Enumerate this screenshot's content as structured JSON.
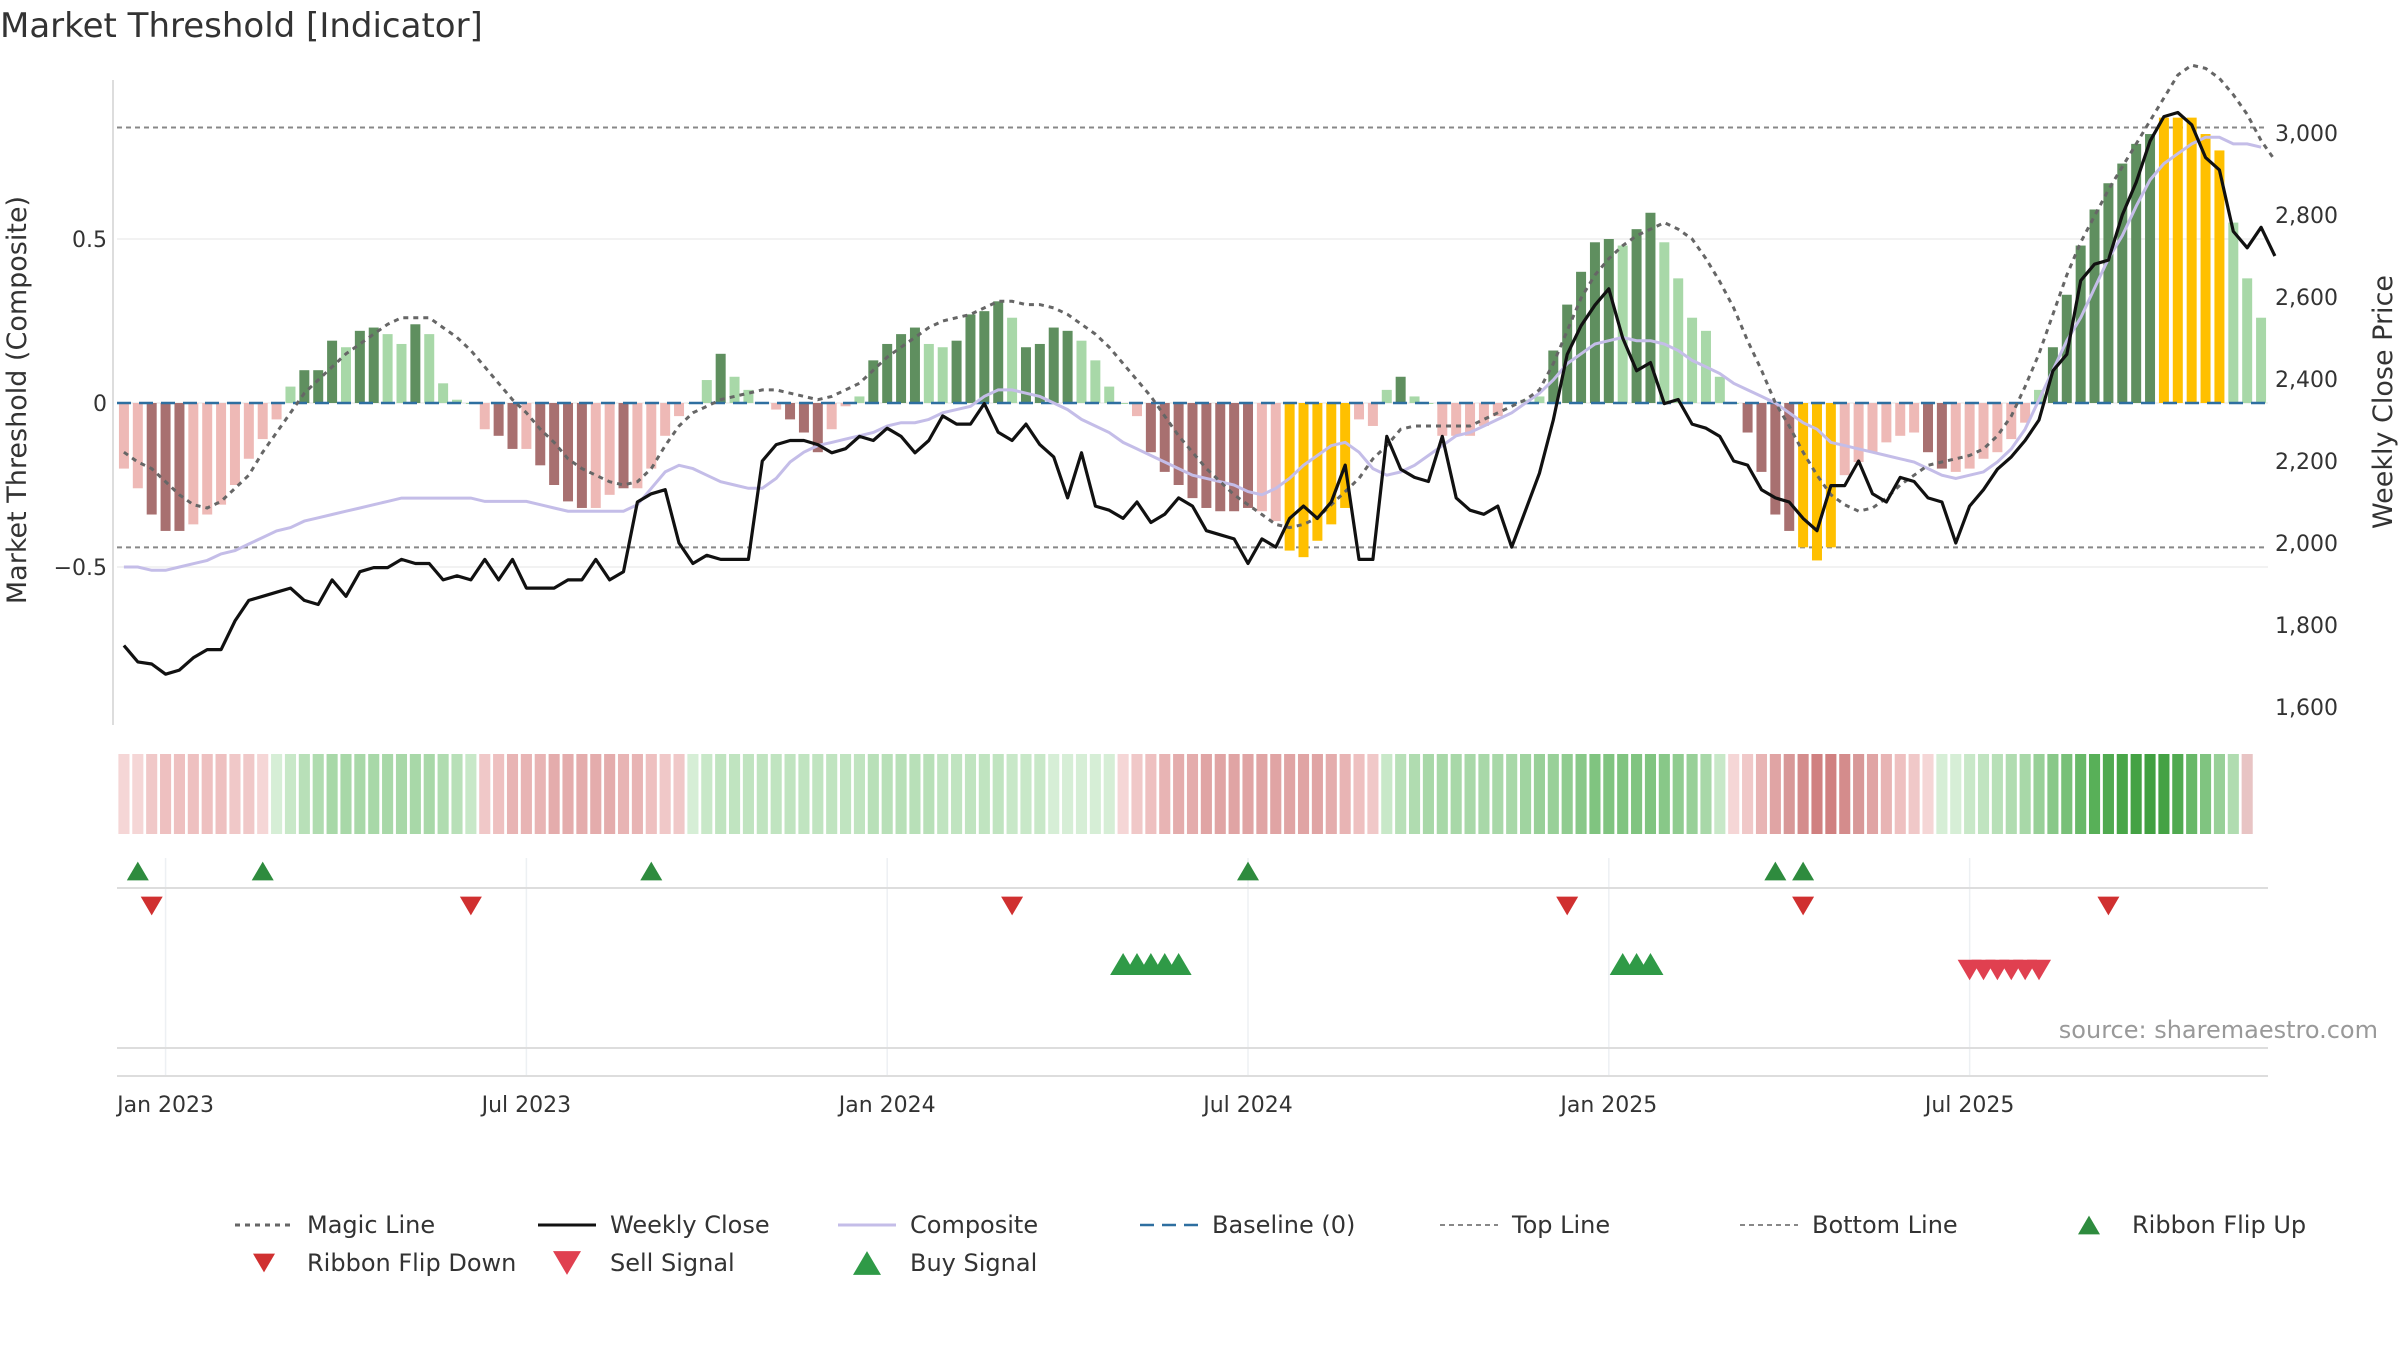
{
  "chart_data": {
    "type": "bar",
    "title": "Market Threshold [Indicator]",
    "source_note": "source: sharemaestro.com",
    "left_axis": {
      "label": "Market Threshold (Composite)",
      "range": [
        -1.0,
        1.0
      ],
      "ticks": [
        {
          "v": 0.5,
          "label": "0.5"
        },
        {
          "v": 0,
          "label": "0"
        },
        {
          "v": -0.5,
          "label": "−0.5"
        }
      ]
    },
    "right_axis": {
      "label": "Weekly Close Price",
      "range": [
        1550,
        3060
      ],
      "ticks": [
        {
          "v": 3000,
          "label": "3,000"
        },
        {
          "v": 2800,
          "label": "2,800"
        },
        {
          "v": 2600,
          "label": "2,600"
        },
        {
          "v": 2400,
          "label": "2,400"
        },
        {
          "v": 2200,
          "label": "2,200"
        },
        {
          "v": 2000,
          "label": "2,000"
        },
        {
          "v": 1800,
          "label": "1,800"
        },
        {
          "v": 1600,
          "label": "1,600"
        }
      ]
    },
    "x_ticks": [
      {
        "week": 3,
        "label": "Jan 2023"
      },
      {
        "week": 29,
        "label": "Jul 2023"
      },
      {
        "week": 55,
        "label": "Jan 2024"
      },
      {
        "week": 81,
        "label": "Jul 2024"
      },
      {
        "week": 107,
        "label": "Jan 2025"
      },
      {
        "week": 133,
        "label": "Jul 2025"
      }
    ],
    "top_line": 0.84,
    "bottom_line": -0.44,
    "bar_values": [
      -0.2,
      -0.26,
      -0.34,
      -0.39,
      -0.39,
      -0.37,
      -0.34,
      -0.31,
      -0.25,
      -0.17,
      -0.11,
      -0.05,
      0.05,
      0.1,
      0.1,
      0.19,
      0.17,
      0.22,
      0.23,
      0.21,
      0.18,
      0.24,
      0.21,
      0.06,
      0.01,
      0.0,
      -0.08,
      -0.1,
      -0.14,
      -0.14,
      -0.19,
      -0.25,
      -0.3,
      -0.32,
      -0.32,
      -0.28,
      -0.26,
      -0.26,
      -0.2,
      -0.1,
      -0.04,
      0.0,
      0.07,
      0.15,
      0.08,
      0.04,
      0.0,
      -0.02,
      -0.05,
      -0.09,
      -0.15,
      -0.08,
      -0.01,
      0.02,
      0.13,
      0.18,
      0.21,
      0.23,
      0.18,
      0.17,
      0.19,
      0.27,
      0.28,
      0.31,
      0.26,
      0.17,
      0.18,
      0.23,
      0.22,
      0.19,
      0.13,
      0.05,
      0.0,
      -0.04,
      -0.15,
      -0.21,
      -0.25,
      -0.29,
      -0.32,
      -0.33,
      -0.33,
      -0.32,
      -0.33,
      -0.36,
      -0.45,
      -0.47,
      -0.42,
      -0.37,
      -0.32,
      -0.05,
      -0.07,
      0.04,
      0.08,
      0.02,
      0.0,
      -0.1,
      -0.1,
      -0.1,
      -0.07,
      -0.04,
      0.0,
      0.01,
      0.02,
      0.16,
      0.3,
      0.4,
      0.49,
      0.5,
      0.48,
      0.53,
      0.58,
      0.49,
      0.38,
      0.26,
      0.22,
      0.08,
      0.0,
      -0.09,
      -0.21,
      -0.34,
      -0.39,
      -0.44,
      -0.48,
      -0.44,
      -0.22,
      -0.18,
      -0.15,
      -0.12,
      -0.1,
      -0.09,
      -0.15,
      -0.2,
      -0.21,
      -0.2,
      -0.17,
      -0.15,
      -0.11,
      -0.06,
      0.04,
      0.17,
      0.33,
      0.48,
      0.59,
      0.67,
      0.73,
      0.79,
      0.82,
      0.87,
      0.87,
      0.87,
      0.82,
      0.77,
      0.55,
      0.38,
      0.26
    ],
    "bar_colors": [
      "#eeb9b6",
      "#eeb9b6",
      "#a87070",
      "#a87070",
      "#a87070",
      "#eeb9b6",
      "#eeb9b6",
      "#eeb9b6",
      "#eeb9b6",
      "#eeb9b6",
      "#eeb9b6",
      "#eeb9b6",
      "#a8d8a8",
      "#5f8f5f",
      "#5f8f5f",
      "#5f8f5f",
      "#a8d8a8",
      "#5f8f5f",
      "#5f8f5f",
      "#a8d8a8",
      "#a8d8a8",
      "#5f8f5f",
      "#a8d8a8",
      "#a8d8a8",
      "#a8d8a8",
      "#a8d8a8",
      "#eeb9b6",
      "#a87070",
      "#a87070",
      "#eeb9b6",
      "#a87070",
      "#a87070",
      "#a87070",
      "#a87070",
      "#eeb9b6",
      "#eeb9b6",
      "#a87070",
      "#eeb9b6",
      "#eeb9b6",
      "#eeb9b6",
      "#eeb9b6",
      "#a8d8a8",
      "#a8d8a8",
      "#5f8f5f",
      "#a8d8a8",
      "#a8d8a8",
      "#a8d8a8",
      "#eeb9b6",
      "#a87070",
      "#a87070",
      "#a87070",
      "#eeb9b6",
      "#eeb9b6",
      "#a8d8a8",
      "#5f8f5f",
      "#5f8f5f",
      "#5f8f5f",
      "#5f8f5f",
      "#a8d8a8",
      "#a8d8a8",
      "#5f8f5f",
      "#5f8f5f",
      "#5f8f5f",
      "#5f8f5f",
      "#a8d8a8",
      "#5f8f5f",
      "#5f8f5f",
      "#5f8f5f",
      "#5f8f5f",
      "#a8d8a8",
      "#a8d8a8",
      "#a8d8a8",
      "#a8d8a8",
      "#eeb9b6",
      "#a87070",
      "#a87070",
      "#a87070",
      "#a87070",
      "#a87070",
      "#a87070",
      "#a87070",
      "#a87070",
      "#eeb9b6",
      "#eeb9b6",
      "#ffc000",
      "#ffc000",
      "#ffc000",
      "#ffc000",
      "#ffc000",
      "#eeb9b6",
      "#eeb9b6",
      "#a8d8a8",
      "#5f8f5f",
      "#a8d8a8",
      "#a8d8a8",
      "#eeb9b6",
      "#eeb9b6",
      "#eeb9b6",
      "#eeb9b6",
      "#eeb9b6",
      "#a8d8a8",
      "#a8d8a8",
      "#a8d8a8",
      "#5f8f5f",
      "#5f8f5f",
      "#5f8f5f",
      "#5f8f5f",
      "#5f8f5f",
      "#a8d8a8",
      "#5f8f5f",
      "#5f8f5f",
      "#a8d8a8",
      "#a8d8a8",
      "#a8d8a8",
      "#a8d8a8",
      "#a8d8a8",
      "#a8d8a8",
      "#a87070",
      "#a87070",
      "#a87070",
      "#a87070",
      "#ffc000",
      "#ffc000",
      "#ffc000",
      "#eeb9b6",
      "#eeb9b6",
      "#eeb9b6",
      "#eeb9b6",
      "#eeb9b6",
      "#eeb9b6",
      "#a87070",
      "#a87070",
      "#eeb9b6",
      "#eeb9b6",
      "#eeb9b6",
      "#eeb9b6",
      "#eeb9b6",
      "#eeb9b6",
      "#a8d8a8",
      "#5f8f5f",
      "#5f8f5f",
      "#5f8f5f",
      "#5f8f5f",
      "#5f8f5f",
      "#5f8f5f",
      "#5f8f5f",
      "#5f8f5f",
      "#ffc000",
      "#ffc000",
      "#ffc000",
      "#ffc000",
      "#ffc000",
      "#a8d8a8",
      "#a8d8a8",
      "#a8d8a8",
      "#a8d8a8"
    ],
    "weekly_close": [
      1750,
      1710,
      1705,
      1680,
      1690,
      1720,
      1740,
      1740,
      1810,
      1860,
      1870,
      1880,
      1890,
      1860,
      1850,
      1910,
      1870,
      1930,
      1940,
      1940,
      1960,
      1950,
      1950,
      1910,
      1920,
      1910,
      1960,
      1910,
      1960,
      1890,
      1890,
      1890,
      1910,
      1910,
      1960,
      1910,
      1930,
      2100,
      2120,
      2130,
      2000,
      1950,
      1970,
      1960,
      1960,
      1960,
      2200,
      2240,
      2250,
      2250,
      2240,
      2220,
      2230,
      2260,
      2250,
      2280,
      2260,
      2220,
      2250,
      2310,
      2290,
      2290,
      2340,
      2270,
      2250,
      2290,
      2240,
      2210,
      2110,
      2220,
      2090,
      2080,
      2060,
      2100,
      2050,
      2070,
      2110,
      2090,
      2030,
      2020,
      2010,
      1950,
      2010,
      1990,
      2060,
      2090,
      2060,
      2100,
      2190,
      1960,
      1960,
      2260,
      2180,
      2160,
      2150,
      2260,
      2110,
      2080,
      2070,
      2090,
      1990,
      2080,
      2170,
      2300,
      2460,
      2530,
      2580,
      2620,
      2500,
      2420,
      2440,
      2340,
      2350,
      2290,
      2280,
      2260,
      2200,
      2190,
      2130,
      2110,
      2100,
      2060,
      2030,
      2140,
      2140,
      2200,
      2120,
      2100,
      2160,
      2150,
      2110,
      2100,
      2000,
      2090,
      2130,
      2180,
      2210,
      2250,
      2300,
      2420,
      2460,
      2640,
      2680,
      2690,
      2800,
      2880,
      2980,
      3040,
      3050,
      3020,
      2940,
      2910,
      2760,
      2720,
      2770,
      2700
    ],
    "composite_line": [
      -0.5,
      -0.5,
      -0.51,
      -0.51,
      -0.5,
      -0.49,
      -0.48,
      -0.46,
      -0.45,
      -0.43,
      -0.41,
      -0.39,
      -0.38,
      -0.36,
      -0.35,
      -0.34,
      -0.33,
      -0.32,
      -0.31,
      -0.3,
      -0.29,
      -0.29,
      -0.29,
      -0.29,
      -0.29,
      -0.29,
      -0.3,
      -0.3,
      -0.3,
      -0.3,
      -0.31,
      -0.32,
      -0.33,
      -0.33,
      -0.33,
      -0.33,
      -0.33,
      -0.31,
      -0.26,
      -0.21,
      -0.19,
      -0.2,
      -0.22,
      -0.24,
      -0.25,
      -0.26,
      -0.26,
      -0.23,
      -0.18,
      -0.15,
      -0.13,
      -0.12,
      -0.11,
      -0.1,
      -0.09,
      -0.07,
      -0.06,
      -0.06,
      -0.05,
      -0.03,
      -0.02,
      -0.01,
      0.02,
      0.04,
      0.04,
      0.03,
      0.02,
      0.0,
      -0.02,
      -0.05,
      -0.07,
      -0.09,
      -0.12,
      -0.14,
      -0.16,
      -0.18,
      -0.2,
      -0.22,
      -0.23,
      -0.24,
      -0.25,
      -0.27,
      -0.28,
      -0.26,
      -0.23,
      -0.19,
      -0.16,
      -0.13,
      -0.12,
      -0.15,
      -0.2,
      -0.22,
      -0.21,
      -0.19,
      -0.16,
      -0.13,
      -0.1,
      -0.09,
      -0.07,
      -0.05,
      -0.03,
      0.0,
      0.03,
      0.07,
      0.12,
      0.15,
      0.18,
      0.19,
      0.2,
      0.19,
      0.19,
      0.18,
      0.16,
      0.13,
      0.11,
      0.09,
      0.06,
      0.04,
      0.02,
      0.0,
      -0.03,
      -0.06,
      -0.08,
      -0.12,
      -0.13,
      -0.14,
      -0.15,
      -0.16,
      -0.17,
      -0.18,
      -0.2,
      -0.22,
      -0.23,
      -0.22,
      -0.21,
      -0.18,
      -0.14,
      -0.08,
      0.01,
      0.1,
      0.19,
      0.26,
      0.35,
      0.44,
      0.51,
      0.6,
      0.68,
      0.73,
      0.76,
      0.79,
      0.81,
      0.81,
      0.79,
      0.79,
      0.78
    ],
    "magic_line": [
      -0.15,
      -0.18,
      -0.2,
      -0.24,
      -0.28,
      -0.31,
      -0.32,
      -0.3,
      -0.26,
      -0.22,
      -0.15,
      -0.09,
      -0.03,
      0.03,
      0.07,
      0.11,
      0.15,
      0.18,
      0.21,
      0.24,
      0.26,
      0.26,
      0.26,
      0.23,
      0.2,
      0.16,
      0.11,
      0.06,
      0.01,
      -0.03,
      -0.08,
      -0.12,
      -0.17,
      -0.2,
      -0.22,
      -0.24,
      -0.25,
      -0.24,
      -0.2,
      -0.13,
      -0.07,
      -0.03,
      -0.01,
      0.01,
      0.02,
      0.03,
      0.04,
      0.04,
      0.03,
      0.02,
      0.01,
      0.02,
      0.04,
      0.06,
      0.1,
      0.14,
      0.17,
      0.2,
      0.23,
      0.25,
      0.26,
      0.27,
      0.29,
      0.31,
      0.31,
      0.3,
      0.3,
      0.29,
      0.27,
      0.24,
      0.21,
      0.17,
      0.12,
      0.07,
      0.02,
      -0.04,
      -0.1,
      -0.15,
      -0.2,
      -0.24,
      -0.28,
      -0.31,
      -0.34,
      -0.37,
      -0.38,
      -0.37,
      -0.35,
      -0.31,
      -0.27,
      -0.23,
      -0.17,
      -0.13,
      -0.08,
      -0.07,
      -0.07,
      -0.07,
      -0.07,
      -0.07,
      -0.05,
      -0.03,
      -0.01,
      0.01,
      0.04,
      0.12,
      0.22,
      0.32,
      0.39,
      0.44,
      0.48,
      0.51,
      0.53,
      0.55,
      0.53,
      0.5,
      0.44,
      0.37,
      0.29,
      0.19,
      0.1,
      0.0,
      -0.07,
      -0.15,
      -0.22,
      -0.28,
      -0.31,
      -0.33,
      -0.32,
      -0.29,
      -0.25,
      -0.22,
      -0.19,
      -0.18,
      -0.17,
      -0.16,
      -0.14,
      -0.1,
      -0.04,
      0.05,
      0.15,
      0.27,
      0.39,
      0.49,
      0.57,
      0.65,
      0.72,
      0.79,
      0.86,
      0.93,
      1.0,
      1.03,
      1.02,
      0.99,
      0.94,
      0.88,
      0.8,
      0.74
    ],
    "ribbon_colors": [
      "#f5d6d6",
      "#f5d6d6",
      "#f0c8c8",
      "#eec0c0",
      "#eec0c0",
      "#eec0c0",
      "#eec0c0",
      "#eec0c0",
      "#f0c8c8",
      "#f0c8c8",
      "#f5d6d6",
      "#d6eed6",
      "#c8e8c8",
      "#b8e0b8",
      "#b0dcb0",
      "#a8d8a8",
      "#a8d8a8",
      "#a8d8a8",
      "#a8d8a8",
      "#a8d8a8",
      "#a8d8a8",
      "#a8d8a8",
      "#a8d8a8",
      "#b0dcb0",
      "#b8e0b8",
      "#c8e8c8",
      "#f0c8c8",
      "#eec0c0",
      "#e8b4b4",
      "#e8b4b4",
      "#e8b4b4",
      "#e4acac",
      "#e4acac",
      "#e4acac",
      "#e4acac",
      "#e4acac",
      "#e8b4b4",
      "#e8b4b4",
      "#eec0c0",
      "#f0c8c8",
      "#f0c8c8",
      "#d6eed6",
      "#c8e8c8",
      "#c0e4c0",
      "#c0e4c0",
      "#c0e4c0",
      "#c0e4c0",
      "#c0e4c0",
      "#c0e4c0",
      "#c0e4c0",
      "#c0e4c0",
      "#c0e4c0",
      "#c0e4c0",
      "#c0e4c0",
      "#b8e0b8",
      "#b8e0b8",
      "#b8e0b8",
      "#b8e0b8",
      "#b8e0b8",
      "#c0e4c0",
      "#c0e4c0",
      "#c0e4c0",
      "#c0e4c0",
      "#c0e4c0",
      "#c8e8c8",
      "#c8e8c8",
      "#c8e8c8",
      "#d6eed6",
      "#d6eed6",
      "#d6eed6",
      "#d6eed6",
      "#d6eed6",
      "#f5d6d6",
      "#f0c8c8",
      "#eec0c0",
      "#e8b4b4",
      "#e4acac",
      "#e4acac",
      "#e0a4a4",
      "#e0a4a4",
      "#e0a4a4",
      "#e0a4a4",
      "#e0a4a4",
      "#e0a4a4",
      "#e0a4a4",
      "#e0a4a4",
      "#e0a4a4",
      "#e4acac",
      "#e8b4b4",
      "#eec0c0",
      "#f0c8c8",
      "#c8e8c8",
      "#b8e0b8",
      "#b0dcb0",
      "#a8d8a8",
      "#a8d8a8",
      "#a8d8a8",
      "#a8d8a8",
      "#a8d8a8",
      "#a8d8a8",
      "#a8d8a8",
      "#a0d4a0",
      "#98d098",
      "#98d098",
      "#90cc90",
      "#88c888",
      "#80c480",
      "#80c480",
      "#80c480",
      "#80c480",
      "#80c480",
      "#88c888",
      "#90cc90",
      "#98d098",
      "#a8d8a8",
      "#c8e8c8",
      "#f5d6d6",
      "#f0c8c8",
      "#e8b4b4",
      "#e0a4a4",
      "#d89898",
      "#d48c8c",
      "#d08080",
      "#d08080",
      "#d48c8c",
      "#d89898",
      "#e0a4a4",
      "#e8b4b4",
      "#eec0c0",
      "#f0c8c8",
      "#f5d6d6",
      "#d6eed6",
      "#d6eed6",
      "#c8e8c8",
      "#c0e4c0",
      "#b8e0b8",
      "#b0dcb0",
      "#a8d8a8",
      "#98d098",
      "#88c888",
      "#78c078",
      "#68b868",
      "#58b058",
      "#50aa50",
      "#48a648",
      "#44a244",
      "#40a040",
      "#44a244",
      "#50aa50",
      "#68b868",
      "#80c480",
      "#98d098",
      "#b0dcb0",
      "#e8c4c4"
    ],
    "ribbon_flip_up": [
      1,
      10,
      38,
      81,
      119,
      121
    ],
    "ribbon_flip_down": [
      2,
      25,
      64,
      104,
      121,
      143
    ],
    "buy_signals": [
      72.5,
      73.5,
      74.5,
      75.5,
      76.5,
      108.5,
      109.5,
      110.5
    ],
    "sell_signals": [
      133.5,
      134.5,
      135.5,
      136.5,
      137.5,
      138.5
    ],
    "legend": [
      {
        "key": "magic",
        "label": "Magic Line"
      },
      {
        "key": "close",
        "label": "Weekly Close"
      },
      {
        "key": "composite",
        "label": "Composite"
      },
      {
        "key": "baseline",
        "label": "Baseline (0)"
      },
      {
        "key": "top",
        "label": "Top Line"
      },
      {
        "key": "bottom",
        "label": "Bottom Line"
      },
      {
        "key": "flipup",
        "label": "Ribbon Flip Up"
      },
      {
        "key": "flipdown",
        "label": "Ribbon Flip Down"
      },
      {
        "key": "sell",
        "label": "Sell Signal"
      },
      {
        "key": "buy",
        "label": "Buy Signal"
      }
    ],
    "colors": {
      "weekly_close": "#111111",
      "composite": "#c4bde8",
      "magic": "#666666",
      "baseline": "#2e6fa0",
      "ref_lines": "#888888",
      "flip_up": "#2e8b3e",
      "flip_down": "#d03030",
      "buy": "#2f9a47",
      "sell": "#e04050"
    }
  }
}
